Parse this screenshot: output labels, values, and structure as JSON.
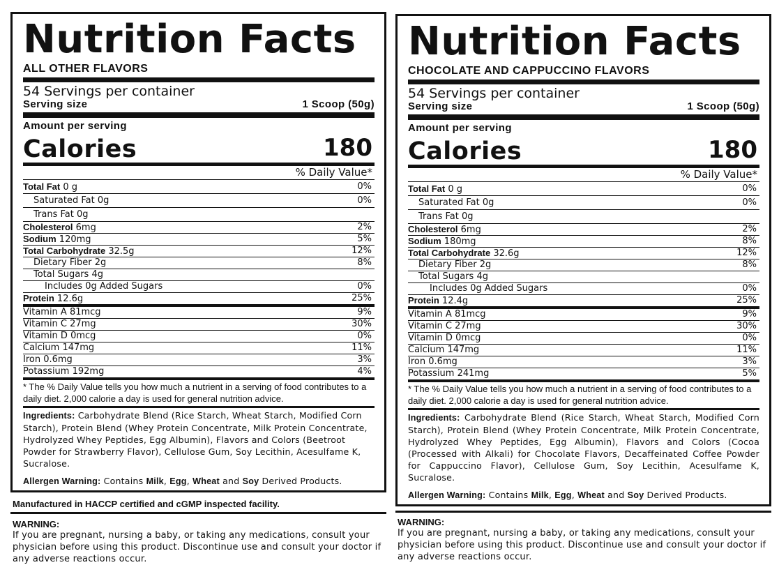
{
  "left": {
    "title": "Nutrition Facts",
    "subtitle": "ALL OTHER FLAVORS",
    "servings": "54 Servings per container",
    "serving_size_label": "Serving size",
    "serving_size_value": "1 Scoop (50g)",
    "amount_label": "Amount per serving",
    "calories_label": "Calories",
    "calories_value": "180",
    "dv_header": "% Daily Value*",
    "rows": [
      {
        "bold": "Total Fat",
        "rest": " 0 g",
        "dv": "0%"
      },
      {
        "bold": "",
        "rest": "Saturated Fat 0g",
        "dv": "0%"
      },
      {
        "bold": "",
        "rest": "Trans Fat 0g",
        "dv": ""
      },
      {
        "bold": "Cholesterol",
        "rest": " 6mg",
        "dv": "2%"
      },
      {
        "bold": "Sodium",
        "rest": " 120mg",
        "dv": "5%"
      },
      {
        "bold": "Total Carbohydrate",
        "rest": " 32.5g",
        "dv": "12%"
      },
      {
        "bold": "",
        "rest": "Dietary Fiber 2g",
        "dv": "8%"
      },
      {
        "bold": "",
        "rest": "Total Sugars 4g",
        "dv": ""
      },
      {
        "bold": "",
        "rest": "Includes 0g Added Sugars",
        "dv": "0%"
      },
      {
        "bold": "Protein",
        "rest": " 12.6g",
        "dv": "25%"
      },
      {
        "bold": "",
        "rest": "Vitamin A 81mcg",
        "dv": "9%"
      },
      {
        "bold": "",
        "rest": "Vitamin C 27mg",
        "dv": "30%"
      },
      {
        "bold": "",
        "rest": "Vitamin D 0mcg",
        "dv": "0%"
      },
      {
        "bold": "",
        "rest": "Calcium 147mg",
        "dv": "11%"
      },
      {
        "bold": "",
        "rest": "Iron 0.6mg",
        "dv": "3%"
      },
      {
        "bold": "",
        "rest": "Potassium 192mg",
        "dv": "4%"
      }
    ],
    "footnote": "* The % Daily Value tells you how much a nutrient in a serving of food contributes to a daily diet. 2,000 calorie a day is used for general nutrition advice.",
    "ingredients_label": "Ingredients:",
    "ingredients_text": " Carbohydrate Blend (Rice Starch, Wheat Starch, Modified Corn Starch), Protein Blend (Whey Protein Concentrate, Milk Protein Concentrate, Hydrolyzed Whey Peptides, Egg Albumin), Flavors and Colors (Beetroot Powder for Strawberry Flavor), Cellulose Gum, Soy Lecithin, Acesulfame K, Sucralose.",
    "allergen_label": "Allergen Warning:",
    "allergen_pre": " Contains ",
    "allergen_milk": "Milk",
    "allergen_sep1": ", ",
    "allergen_egg": "Egg",
    "allergen_sep2": ", ",
    "allergen_wheat": "Wheat",
    "allergen_and": " and ",
    "allergen_soy": "Soy",
    "allergen_post": " Derived Products.",
    "manufactured": "Manufactured in HACCP certified and cGMP inspected facility.",
    "warning_title": "WARNING:",
    "warning_text": "If you are pregnant, nursing a baby, or taking any medications, consult your physician before using this product. Discontinue use and consult your doctor if any adverse reactions occur."
  },
  "right": {
    "title": "Nutrition Facts",
    "subtitle": "CHOCOLATE AND CAPPUCCINO FLAVORS",
    "servings": "54 Servings per container",
    "serving_size_label": "Serving size",
    "serving_size_value": "1 Scoop (50g)",
    "amount_label": "Amount per serving",
    "calories_label": "Calories",
    "calories_value": "180",
    "dv_header": "% Daily Value*",
    "rows": [
      {
        "bold": "Total Fat",
        "rest": " 0 g",
        "dv": "0%"
      },
      {
        "bold": "",
        "rest": "Saturated Fat 0g",
        "dv": "0%"
      },
      {
        "bold": "",
        "rest": "Trans Fat 0g",
        "dv": ""
      },
      {
        "bold": "Cholesterol",
        "rest": " 6mg",
        "dv": "2%"
      },
      {
        "bold": "Sodium",
        "rest": " 180mg",
        "dv": "8%"
      },
      {
        "bold": "Total Carbohydrate",
        "rest": " 32.6g",
        "dv": "12%"
      },
      {
        "bold": "",
        "rest": "Dietary Fiber 2g",
        "dv": "8%"
      },
      {
        "bold": "",
        "rest": "Total Sugars 4g",
        "dv": ""
      },
      {
        "bold": "",
        "rest": "Includes 0g Added Sugars",
        "dv": "0%"
      },
      {
        "bold": "Protein",
        "rest": " 12.4g",
        "dv": "25%"
      },
      {
        "bold": "",
        "rest": "Vitamin A 81mcg",
        "dv": "9%"
      },
      {
        "bold": "",
        "rest": "Vitamin C 27mg",
        "dv": "30%"
      },
      {
        "bold": "",
        "rest": "Vitamin D 0mcg",
        "dv": "0%"
      },
      {
        "bold": "",
        "rest": "Calcium 147mg",
        "dv": "11%"
      },
      {
        "bold": "",
        "rest": "Iron 0.6mg",
        "dv": "3%"
      },
      {
        "bold": "",
        "rest": "Potassium 241mg",
        "dv": "5%"
      }
    ],
    "footnote": "* The % Daily Value tells you how much a nutrient in a serving of food contributes to a daily diet. 2,000 calorie a day is used for general nutrition advice.",
    "ingredients_label": "Ingredients:",
    "ingredients_text": " Carbohydrate Blend (Rice Starch, Wheat Starch, Modified Corn Starch), Protein Blend (Whey Protein Concentrate, Milk Protein Concentrate, Hydrolyzed Whey Peptides, Egg Albumin), Flavors and Colors (Cocoa (Processed with Alkali) for Chocolate Flavors, Decaffeinated Coffee Powder for Cappuccino Flavor), Cellulose Gum, Soy Lecithin, Acesulfame K, Sucralose.",
    "allergen_label": "Allergen Warning:",
    "allergen_pre": " Contains ",
    "allergen_milk": "Milk",
    "allergen_sep1": ", ",
    "allergen_egg": "Egg",
    "allergen_sep2": ", ",
    "allergen_wheat": "Wheat",
    "allergen_and": " and ",
    "allergen_soy": "Soy",
    "allergen_post": " Derived Products.",
    "warning_title": "WARNING:",
    "warning_text": "If you are pregnant, nursing a baby, or taking any medications, consult your physician before using this product. Discontinue use and consult your doctor if any adverse reactions occur."
  }
}
